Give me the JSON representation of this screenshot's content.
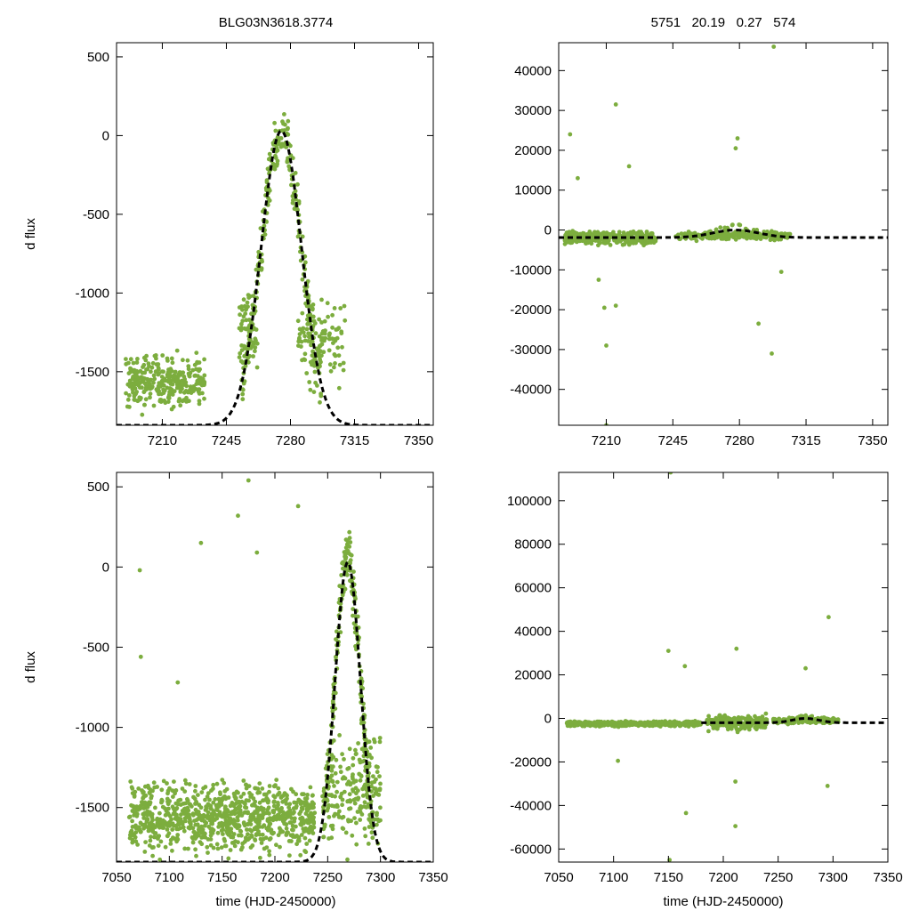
{
  "figure": {
    "title_left": "BLG03N3618.3774",
    "title_right": "5751   20.19   0.27   574",
    "ylabel": "d flux",
    "xlabel": "time (HJD-2450000)",
    "point_color": "#7cad3e",
    "model_color": "#000000"
  },
  "chart_data": [
    {
      "id": "top-left",
      "type": "scatter",
      "title": "BLG03N3618.3774",
      "xlabel": "",
      "ylabel": "d flux",
      "xlim": [
        7185,
        7358
      ],
      "ylim": [
        -1840,
        590
      ],
      "xticks": [
        7210,
        7245,
        7280,
        7315,
        7350
      ],
      "yticks": [
        -1500,
        -1000,
        -500,
        0,
        500
      ],
      "xtick_labels": [
        "7210",
        "7245",
        "7280",
        "7315",
        "7350"
      ],
      "ytick_labels": [
        "-1500",
        "-1000",
        "-500",
        "0",
        "500"
      ],
      "series": [
        {
          "name": "data",
          "style": "points",
          "clusters": [
            {
              "x": [
                7190,
                7233
              ],
              "base": -1560,
              "spread": 240,
              "count": 300
            },
            {
              "x": [
                7252,
                7262
              ],
              "base": -1200,
              "spread": 400,
              "count": 60
            },
            {
              "x": [
                7284,
                7310
              ],
              "base": -1300,
              "spread": 400,
              "count": 110
            }
          ]
        },
        {
          "name": "model",
          "style": "dashed",
          "peak_t": 7275,
          "peak": 30,
          "base": -1840,
          "sigma": 11
        }
      ]
    },
    {
      "id": "top-right",
      "type": "scatter",
      "title": "5751   20.19   0.27   574",
      "xlabel": "",
      "ylabel": "",
      "xlim": [
        7185,
        7358
      ],
      "ylim": [
        -49000,
        47000
      ],
      "xticks": [
        7210,
        7245,
        7280,
        7315,
        7350
      ],
      "yticks": [
        -40000,
        -30000,
        -20000,
        -10000,
        0,
        10000,
        20000,
        30000,
        40000
      ],
      "xtick_labels": [
        "7210",
        "7245",
        "7280",
        "7315",
        "7350"
      ],
      "ytick_labels": [
        "-40000",
        "-30000",
        "-20000",
        "-10000",
        "0",
        "10000",
        "20000",
        "30000",
        "40000"
      ],
      "series": [
        {
          "name": "data",
          "style": "points",
          "clusters": [
            {
              "x": [
                7188,
                7236
              ],
              "base": -2000,
              "spread": 2500,
              "count": 320
            },
            {
              "x": [
                7246,
                7307
              ],
              "base": -1500,
              "spread": 1200,
              "count": 220
            }
          ],
          "outliers": [
            [
              7191,
              24000
            ],
            [
              7195,
              13000
            ],
            [
              7215,
              31500
            ],
            [
              7222,
              16000
            ],
            [
              7279,
              23000
            ],
            [
              7278,
              20500
            ],
            [
              7298,
              46000
            ],
            [
              7210,
              -29000
            ],
            [
              7209,
              -19500
            ],
            [
              7215,
              -19000
            ],
            [
              7290,
              -23500
            ],
            [
              7297,
              -31000
            ],
            [
              7302,
              -10500
            ],
            [
              7206,
              -12500
            ],
            [
              7210,
              -49000
            ]
          ]
        },
        {
          "name": "model",
          "style": "dashed",
          "peak_t": 7278,
          "peak": 0,
          "base": -1900,
          "sigma": 12
        }
      ]
    },
    {
      "id": "bottom-left",
      "type": "scatter",
      "title": "",
      "xlabel": "time (HJD-2450000)",
      "ylabel": "d flux",
      "xlim": [
        7050,
        7350
      ],
      "ylim": [
        -1840,
        590
      ],
      "xticks": [
        7050,
        7100,
        7150,
        7200,
        7250,
        7300,
        7350
      ],
      "yticks": [
        -1500,
        -1000,
        -500,
        0,
        500
      ],
      "xtick_labels": [
        "7050",
        "7100",
        "7150",
        "7200",
        "7250",
        "7300",
        "7350"
      ],
      "ytick_labels": [
        "-1500",
        "-1000",
        "-500",
        "0",
        "500"
      ],
      "series": [
        {
          "name": "data",
          "style": "points",
          "clusters": [
            {
              "x": [
                7062,
                7238
              ],
              "base": -1560,
              "spread": 300,
              "count": 900
            },
            {
              "x": [
                7250,
                7300
              ],
              "base": -1400,
              "spread": 450,
              "count": 180
            }
          ],
          "outliers": [
            [
              7072,
              -20
            ],
            [
              7073,
              -560
            ],
            [
              7108,
              -720
            ],
            [
              7130,
              150
            ],
            [
              7175,
              540
            ],
            [
              7165,
              320
            ],
            [
              7222,
              380
            ],
            [
              7183,
              90
            ]
          ]
        },
        {
          "name": "model",
          "style": "dashed",
          "peak_t": 7269,
          "peak": 30,
          "base": -1840,
          "sigma": 12
        }
      ]
    },
    {
      "id": "bottom-right",
      "type": "scatter",
      "title": "",
      "xlabel": "time (HJD-2450000)",
      "ylabel": "",
      "xlim": [
        7050,
        7350
      ],
      "ylim": [
        -66000,
        113000
      ],
      "xticks": [
        7050,
        7100,
        7150,
        7200,
        7250,
        7300,
        7350
      ],
      "yticks": [
        -60000,
        -40000,
        -20000,
        0,
        20000,
        40000,
        60000,
        80000,
        100000
      ],
      "xtick_labels": [
        "7050",
        "7100",
        "7150",
        "7200",
        "7250",
        "7300",
        "7350"
      ],
      "ytick_labels": [
        "-60000",
        "-40000",
        "-20000",
        "0",
        "20000",
        "40000",
        "60000",
        "80000",
        "100000"
      ],
      "series": [
        {
          "name": "data",
          "style": "points",
          "clusters": [
            {
              "x": [
                7057,
                7180
              ],
              "base": -2500,
              "spread": 1500,
              "count": 500
            },
            {
              "x": [
                7185,
                7240
              ],
              "base": -2000,
              "spread": 4500,
              "count": 200
            },
            {
              "x": [
                7245,
                7305
              ],
              "base": -1000,
              "spread": 1800,
              "count": 150
            }
          ],
          "outliers": [
            [
              7152,
              113000
            ],
            [
              7150,
              31000
            ],
            [
              7165,
              24000
            ],
            [
              7212,
              32000
            ],
            [
              7296,
              46500
            ],
            [
              7275,
              23000
            ],
            [
              7166,
              -43500
            ],
            [
              7211,
              -29000
            ],
            [
              7211,
              -49500
            ],
            [
              7295,
              -31000
            ],
            [
              7104,
              -19500
            ],
            [
              7151,
              -65000
            ]
          ]
        },
        {
          "name": "model",
          "style": "dashed",
          "start_t": 7180,
          "peak_t": 7275,
          "peak": 0,
          "base": -2000,
          "sigma": 12
        }
      ]
    }
  ]
}
